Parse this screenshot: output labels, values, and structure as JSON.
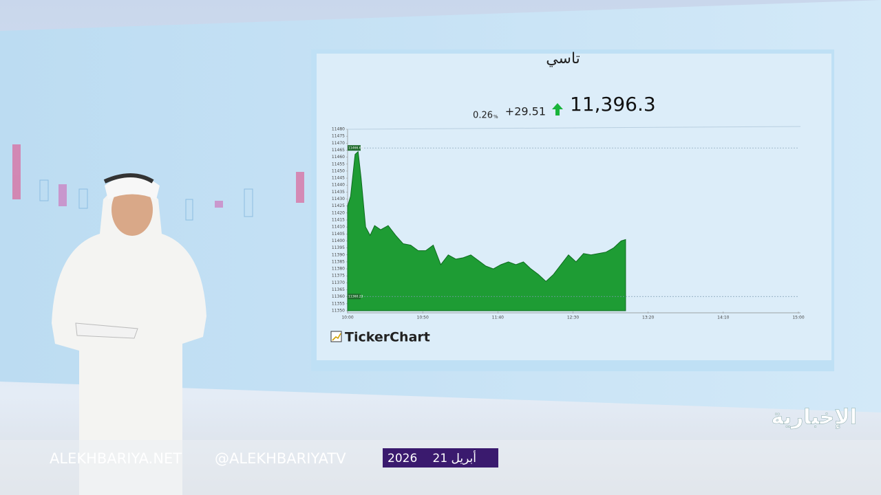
{
  "chart_data": {
    "type": "area",
    "title": "تاسي",
    "price": "11,396.3",
    "change": "+29.51",
    "change_percent": "0.26",
    "percent_sign": "%",
    "brand": "TickerChart",
    "x": [
      "10:00",
      "10:02",
      "10:05",
      "10:07",
      "10:09",
      "10:12",
      "10:15",
      "10:18",
      "10:22",
      "10:27",
      "10:32",
      "10:37",
      "10:42",
      "10:47",
      "10:52",
      "10:57",
      "11:02",
      "11:07",
      "11:12",
      "11:17",
      "11:22",
      "11:27",
      "11:32",
      "11:37",
      "11:42",
      "11:47",
      "11:52",
      "11:57",
      "12:02",
      "12:07",
      "12:12",
      "12:17",
      "12:22",
      "12:27",
      "12:32",
      "12:37",
      "12:42",
      "12:47",
      "12:52",
      "12:57",
      "13:02",
      "13:05"
    ],
    "values": [
      11425,
      11432,
      11462,
      11464,
      11445,
      11410,
      11404,
      11411,
      11408,
      11411,
      11404,
      11398,
      11397,
      11393,
      11393,
      11397,
      11383,
      11390,
      11387,
      11388,
      11390,
      11386,
      11382,
      11380,
      11383,
      11385,
      11383,
      11385,
      11380,
      11376,
      11371,
      11376,
      11383,
      11390,
      11385,
      11391,
      11390,
      11391,
      11392,
      11395,
      11400,
      11401
    ],
    "color": "#1e9c34",
    "price_markers": [
      11466.61,
      11360.23
    ],
    "xlim": [
      "10:00",
      "15:00"
    ],
    "xticks": [
      "10:00",
      "10:50",
      "11:40",
      "12:30",
      "13:20",
      "14:10",
      "15:00"
    ],
    "ylim": [
      11350,
      11480
    ],
    "yticks": [
      11350,
      11355,
      11360,
      11365,
      11370,
      11375,
      11380,
      11385,
      11390,
      11395,
      11400,
      11405,
      11410,
      11415,
      11420,
      11425,
      11430,
      11435,
      11440,
      11445,
      11450,
      11455,
      11460,
      11465,
      11470,
      11475,
      11480
    ],
    "grid": false
  },
  "overlay": {
    "website": "ALEKHBARIYA.NET",
    "twitter": "@ALEKHBARIYATV",
    "year": "2026",
    "day": "21 أبريل",
    "channel": "الإخبارية"
  }
}
